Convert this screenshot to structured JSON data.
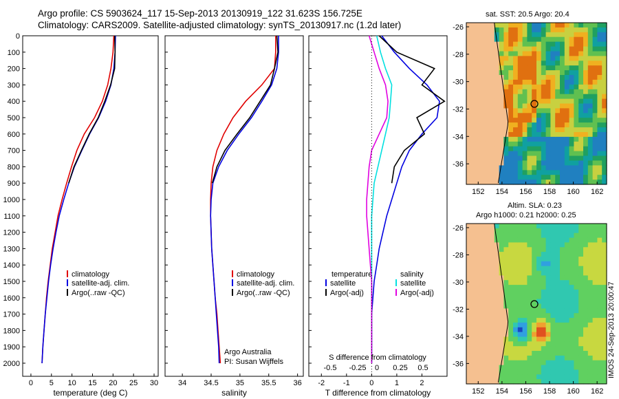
{
  "header": {
    "line1": "Argo profile: CS 5903624_117 15-Sep-2013 20130919_122 31.623S 156.725E",
    "line2": "Climatology: CARS2009. Satellite-adjusted climatology: synTS_20130917.nc (1.2d later)"
  },
  "legend_profile": [
    "climatology",
    "satellite-adj. clim.",
    "Argo(..raw -QC)"
  ],
  "credit": [
    "Argo Australia",
    "PI: Susan Wijffels"
  ],
  "diff_legend": {
    "temp_head": "temperature",
    "sal_head": "salinity",
    "temp_items": [
      "satellite",
      "Argo(-adj)"
    ],
    "sal_items": [
      "satellite",
      "Argo(-adj)"
    ]
  },
  "sst_title": "sat. SST: 20.5  Argo: 20.4",
  "sla_title1": "Altim. SLA: 0.23",
  "sla_title2": "Argo h1000: 0.21  h2000: 0.25",
  "side_stamp": "IMOS 24-Sep-2013 20:00:47",
  "colors": {
    "clim": "#e00000",
    "sat": "#0000e0",
    "argo": "#000000",
    "cyan": "#00e0e0",
    "magenta": "#e000e0",
    "land": "#f5c090"
  },
  "chart_data": [
    {
      "type": "line",
      "title": "",
      "xlabel": "temperature (deg C)",
      "ylabel": "",
      "xlim": [
        -2,
        31
      ],
      "ylim": [
        2080,
        0
      ],
      "xticks": [
        "0",
        "5",
        "10",
        "15",
        "20",
        "25",
        "30"
      ],
      "yticks": [
        "0",
        "100",
        "200",
        "300",
        "400",
        "500",
        "600",
        "700",
        "800",
        "900",
        "1000",
        "1100",
        "1200",
        "1300",
        "1400",
        "1500",
        "1600",
        "1700",
        "1800",
        "1900",
        "2000"
      ],
      "series": [
        {
          "name": "climatology",
          "x": [
            20.2,
            20.0,
            19.5,
            18.7,
            17.4,
            15.5,
            13.0,
            11.2,
            9.9,
            8.7,
            7.6,
            6.6,
            5.9,
            5.2,
            4.7,
            4.2,
            3.8,
            3.5,
            3.2,
            2.9,
            2.7
          ],
          "y": [
            0,
            100,
            200,
            300,
            400,
            500,
            600,
            700,
            800,
            900,
            1000,
            1100,
            1200,
            1300,
            1400,
            1500,
            1600,
            1700,
            1800,
            1900,
            2000
          ]
        },
        {
          "name": "satellite-adj. clim.",
          "x": [
            20.6,
            20.5,
            20.2,
            19.5,
            18.2,
            16.5,
            14.3,
            12.4,
            10.6,
            9.2,
            8.0,
            6.9,
            6.1,
            5.4,
            4.8,
            4.3,
            3.9,
            3.5,
            3.2,
            2.9,
            2.7
          ],
          "y": [
            0,
            100,
            200,
            300,
            400,
            500,
            600,
            700,
            800,
            900,
            1000,
            1100,
            1200,
            1300,
            1400,
            1500,
            1600,
            1700,
            1800,
            1900,
            2000
          ]
        },
        {
          "name": "Argo(..raw -QC)",
          "x": [
            20.4,
            20.5,
            20.4,
            19.4,
            18.0,
            16.4,
            14.2,
            12.3,
            10.5,
            9.2
          ],
          "y": [
            0,
            100,
            200,
            300,
            400,
            500,
            600,
            700,
            800,
            900
          ]
        }
      ]
    },
    {
      "type": "line",
      "title": "",
      "xlabel": "salinity",
      "ylabel": "",
      "xlim": [
        33.7,
        36.1
      ],
      "ylim": [
        2080,
        0
      ],
      "xticks": [
        "34",
        "34.5",
        "35",
        "35.5",
        "36"
      ],
      "series": [
        {
          "name": "climatology",
          "x": [
            35.62,
            35.62,
            35.6,
            35.38,
            35.1,
            34.88,
            34.72,
            34.6,
            34.53,
            34.5,
            34.49,
            34.49,
            34.5,
            34.51,
            34.53,
            34.55,
            34.57,
            34.6,
            34.62,
            34.64,
            34.66
          ],
          "y": [
            0,
            100,
            200,
            300,
            400,
            500,
            600,
            700,
            800,
            900,
            1000,
            1100,
            1200,
            1300,
            1400,
            1500,
            1600,
            1700,
            1800,
            1900,
            2000
          ]
        },
        {
          "name": "satellite-adj. clim.",
          "x": [
            35.67,
            35.67,
            35.64,
            35.55,
            35.38,
            35.2,
            34.98,
            34.78,
            34.63,
            34.53,
            34.5,
            34.49,
            34.5,
            34.51,
            34.53,
            34.55,
            34.57,
            34.59,
            34.61,
            34.63,
            34.64
          ],
          "y": [
            0,
            100,
            200,
            300,
            400,
            500,
            600,
            700,
            800,
            900,
            1000,
            1100,
            1200,
            1300,
            1400,
            1500,
            1600,
            1700,
            1800,
            1900,
            2000
          ]
        },
        {
          "name": "Argo(..raw -QC)",
          "x": [
            35.64,
            35.66,
            35.6,
            35.53,
            35.35,
            35.17,
            34.95,
            34.74,
            34.6,
            34.52
          ],
          "y": [
            0,
            100,
            200,
            300,
            400,
            500,
            600,
            700,
            800,
            900
          ]
        }
      ]
    },
    {
      "type": "line",
      "title": "",
      "xlabel": "T difference from climatology",
      "xlabel_top": "S difference from climatology",
      "xlim": [
        -2.5,
        3.0
      ],
      "ylim": [
        2080,
        0
      ],
      "xticks": [
        "-2",
        "-1",
        "0",
        "1",
        "2"
      ],
      "xticks_top": [
        "-0.5",
        "-0.25",
        "0",
        "0.25",
        "0.5"
      ],
      "series": [
        {
          "name": "temperature satellite",
          "x": [
            0.4,
            0.9,
            1.5,
            2.2,
            2.7,
            2.6,
            2.0,
            1.5,
            1.2,
            1.0,
            0.8,
            0.6,
            0.45,
            0.3,
            0.2,
            0.1,
            0.05,
            0.0,
            0.0,
            0.0,
            0.0
          ],
          "y": [
            0,
            100,
            200,
            300,
            400,
            500,
            600,
            700,
            800,
            900,
            1000,
            1100,
            1200,
            1300,
            1400,
            1500,
            1600,
            1700,
            1800,
            1900,
            2000
          ]
        },
        {
          "name": "temperature Argo(-adj)",
          "x": [
            0.3,
            1.0,
            2.5,
            2.0,
            2.9,
            1.8,
            2.1,
            1.3,
            0.9,
            0.8
          ],
          "y": [
            0,
            100,
            200,
            300,
            400,
            500,
            600,
            700,
            800,
            900
          ]
        },
        {
          "name": "salinity satellite",
          "x": [
            0.2,
            0.35,
            0.55,
            0.8,
            0.75,
            0.7,
            0.55,
            0.4,
            0.25,
            0.1,
            0.05,
            0.0,
            0.0,
            0.0,
            0.0,
            0.0,
            0.0,
            0.0,
            0.0,
            0.0,
            0.0
          ],
          "y": [
            0,
            100,
            200,
            300,
            400,
            500,
            600,
            700,
            800,
            900,
            1000,
            1100,
            1200,
            1300,
            1400,
            1500,
            1600,
            1700,
            1800,
            1900,
            2000
          ]
        },
        {
          "name": "salinity Argo(-adj)",
          "x": [
            -0.1,
            0.1,
            0.3,
            0.55,
            0.65,
            0.6,
            0.3,
            0.0,
            -0.1,
            -0.15,
            -0.2,
            -0.2,
            -0.15,
            -0.1,
            -0.05,
            0.0,
            0.0,
            0.0,
            0.0,
            0.0,
            0.0
          ],
          "y": [
            0,
            100,
            200,
            300,
            400,
            500,
            600,
            700,
            800,
            900,
            1000,
            1100,
            1200,
            1300,
            1400,
            1500,
            1600,
            1700,
            1800,
            1900,
            2000
          ]
        }
      ]
    },
    {
      "type": "heatmap",
      "title": "sat. SST: 20.5  Argo: 20.4",
      "xlim": [
        151,
        162.8
      ],
      "ylim": [
        -37.5,
        -25.7
      ],
      "xticks": [
        "152",
        "154",
        "156",
        "158",
        "160",
        "162"
      ],
      "yticks": [
        "-26",
        "-28",
        "-30",
        "-32",
        "-34",
        "-36"
      ],
      "marker": {
        "lon": 156.725,
        "lat": -31.623
      }
    },
    {
      "type": "heatmap",
      "title": "Altim. SLA: 0.23",
      "subtitle": "Argo h1000: 0.21  h2000: 0.25",
      "xlim": [
        151,
        162.8
      ],
      "ylim": [
        -37.5,
        -25.7
      ],
      "xticks": [
        "152",
        "154",
        "156",
        "158",
        "160",
        "162"
      ],
      "yticks": [
        "-26",
        "-28",
        "-30",
        "-32",
        "-34",
        "-36"
      ],
      "marker": {
        "lon": 156.725,
        "lat": -31.623
      }
    }
  ]
}
